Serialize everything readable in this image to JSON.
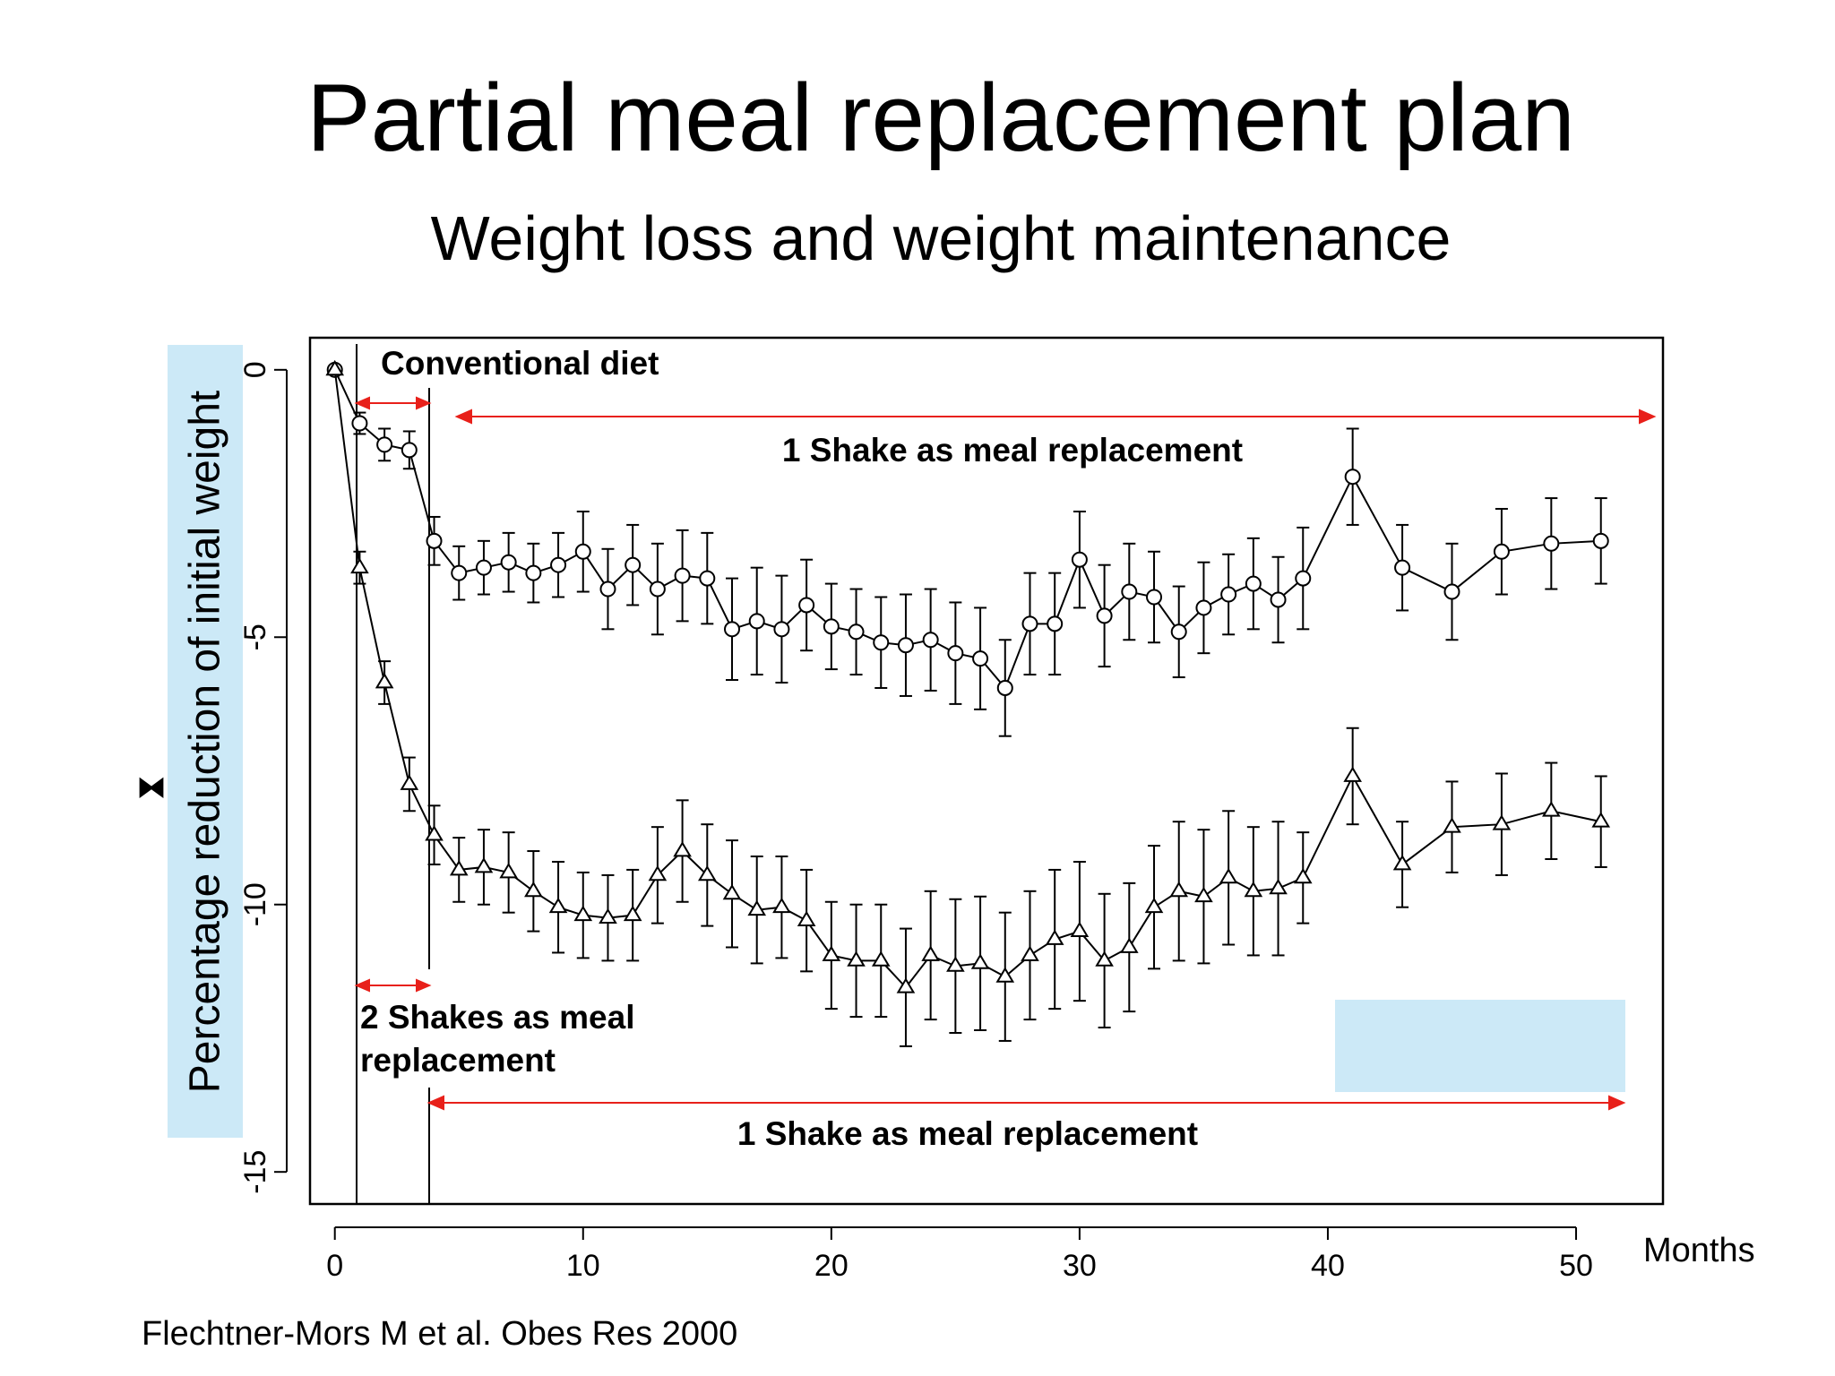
{
  "title": "Partial meal replacement plan",
  "subtitle": "Weight loss and weight maintenance",
  "citation": "Flechtner-Mors M et al. Obes Res 2000",
  "chart_data": {
    "type": "line",
    "ylabel": "Percentage reduction of initial weight",
    "xlabel": "Months",
    "xlim": [
      -1,
      53.5
    ],
    "ylim": [
      -15.6,
      0.6
    ],
    "x_ticks": [
      0,
      10,
      20,
      30,
      40,
      50
    ],
    "y_ticks": [
      0,
      -5,
      -10,
      -15
    ],
    "annotations": {
      "conventional_diet": "Conventional diet",
      "top_arrow_label": "1 Shake as meal replacement",
      "two_shakes_label_line1": "2 Shakes as meal",
      "two_shakes_label_line2": "replacement",
      "bottom_arrow_label": "1 Shake as meal replacement"
    },
    "colors": {
      "series": "#000000",
      "arrow": "#e8201a",
      "highlight": "#cce9f7"
    },
    "series": [
      {
        "marker": "circle",
        "x": [
          0,
          1,
          2,
          3,
          4,
          5,
          6,
          7,
          8,
          9,
          10,
          11,
          12,
          13,
          14,
          15,
          16,
          17,
          18,
          19,
          20,
          21,
          22,
          23,
          24,
          25,
          26,
          27,
          28,
          29,
          30,
          31,
          32,
          33,
          34,
          35,
          36,
          37,
          38,
          39,
          41,
          43,
          45,
          47,
          49,
          51
        ],
        "y": [
          0,
          -1.0,
          -1.4,
          -1.5,
          -3.2,
          -3.8,
          -3.7,
          -3.6,
          -3.8,
          -3.65,
          -3.4,
          -4.1,
          -3.65,
          -4.1,
          -3.85,
          -3.9,
          -4.85,
          -4.7,
          -4.85,
          -4.4,
          -4.8,
          -4.9,
          -5.1,
          -5.15,
          -5.05,
          -5.3,
          -5.4,
          -5.95,
          -4.75,
          -4.75,
          -3.55,
          -4.6,
          -4.15,
          -4.25,
          -4.9,
          -4.45,
          -4.2,
          -4.0,
          -4.3,
          -3.9,
          -2.0,
          -3.7,
          -4.15,
          -3.4,
          -3.25,
          -3.2
        ],
        "err": [
          0,
          0.2,
          0.3,
          0.35,
          0.45,
          0.5,
          0.5,
          0.55,
          0.55,
          0.6,
          0.75,
          0.75,
          0.75,
          0.85,
          0.85,
          0.85,
          0.95,
          1.0,
          1.0,
          0.85,
          0.8,
          0.8,
          0.85,
          0.95,
          0.95,
          0.95,
          0.95,
          0.9,
          0.95,
          0.95,
          0.9,
          0.95,
          0.9,
          0.85,
          0.85,
          0.85,
          0.75,
          0.85,
          0.8,
          0.95,
          0.9,
          0.8,
          0.9,
          0.8,
          0.85,
          0.8
        ]
      },
      {
        "marker": "triangle",
        "x": [
          0,
          1,
          2,
          3,
          4,
          5,
          6,
          7,
          8,
          9,
          10,
          11,
          12,
          13,
          14,
          15,
          16,
          17,
          18,
          19,
          20,
          21,
          22,
          23,
          24,
          25,
          26,
          27,
          28,
          29,
          30,
          31,
          32,
          33,
          34,
          35,
          36,
          37,
          38,
          39,
          41,
          43,
          45,
          47,
          49,
          51
        ],
        "y": [
          0,
          -3.7,
          -5.85,
          -7.75,
          -8.7,
          -9.35,
          -9.3,
          -9.4,
          -9.75,
          -10.05,
          -10.2,
          -10.25,
          -10.2,
          -9.45,
          -9.0,
          -9.45,
          -9.8,
          -10.1,
          -10.05,
          -10.3,
          -10.95,
          -11.05,
          -11.05,
          -11.55,
          -10.95,
          -11.15,
          -11.1,
          -11.35,
          -10.95,
          -10.65,
          -10.5,
          -11.05,
          -10.8,
          -10.05,
          -9.75,
          -9.85,
          -9.5,
          -9.75,
          -9.7,
          -9.5,
          -7.6,
          -9.25,
          -8.55,
          -8.5,
          -8.25,
          -8.45
        ],
        "err": [
          0,
          0.3,
          0.4,
          0.5,
          0.55,
          0.6,
          0.7,
          0.75,
          0.75,
          0.85,
          0.8,
          0.8,
          0.85,
          0.9,
          0.95,
          0.95,
          1.0,
          1.0,
          0.95,
          0.95,
          1.0,
          1.05,
          1.05,
          1.1,
          1.2,
          1.25,
          1.25,
          1.2,
          1.2,
          1.3,
          1.3,
          1.25,
          1.2,
          1.15,
          1.3,
          1.25,
          1.25,
          1.2,
          1.25,
          0.85,
          0.9,
          0.8,
          0.85,
          0.95,
          0.9,
          0.85
        ]
      }
    ]
  }
}
